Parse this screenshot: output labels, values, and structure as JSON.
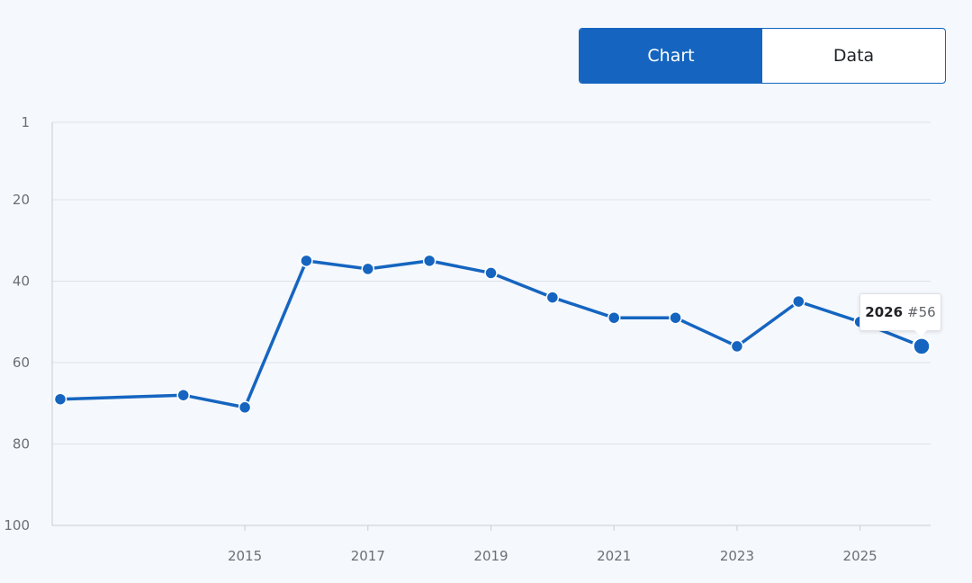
{
  "toggle": {
    "chart_label": "Chart",
    "data_label": "Data",
    "active": "chart"
  },
  "tooltip": {
    "year": "2026",
    "rank": "#56"
  },
  "colors": {
    "line": "#1565c0",
    "grid": "#dde3ea",
    "axis": "#c9ced6",
    "background": "#f5f8fc"
  },
  "chart_data": {
    "type": "line",
    "title": "",
    "xlabel": "",
    "ylabel": "",
    "y_inverted": true,
    "ylim": [
      1,
      100
    ],
    "xlim": [
      2012,
      2026
    ],
    "y_ticks": [
      1,
      20,
      40,
      60,
      80,
      100
    ],
    "x_ticks": [
      2015,
      2017,
      2019,
      2021,
      2023,
      2025
    ],
    "grid": true,
    "series": [
      {
        "x": [
          2012,
          2014,
          2015,
          2016,
          2017,
          2018,
          2019,
          2020,
          2021,
          2022,
          2023,
          2024,
          2025,
          2026
        ],
        "values": [
          69,
          68,
          71,
          35,
          37,
          35,
          38,
          44,
          49,
          49,
          56,
          45,
          50,
          56
        ]
      }
    ],
    "highlighted_point": {
      "x": 2026,
      "y": 56
    }
  }
}
